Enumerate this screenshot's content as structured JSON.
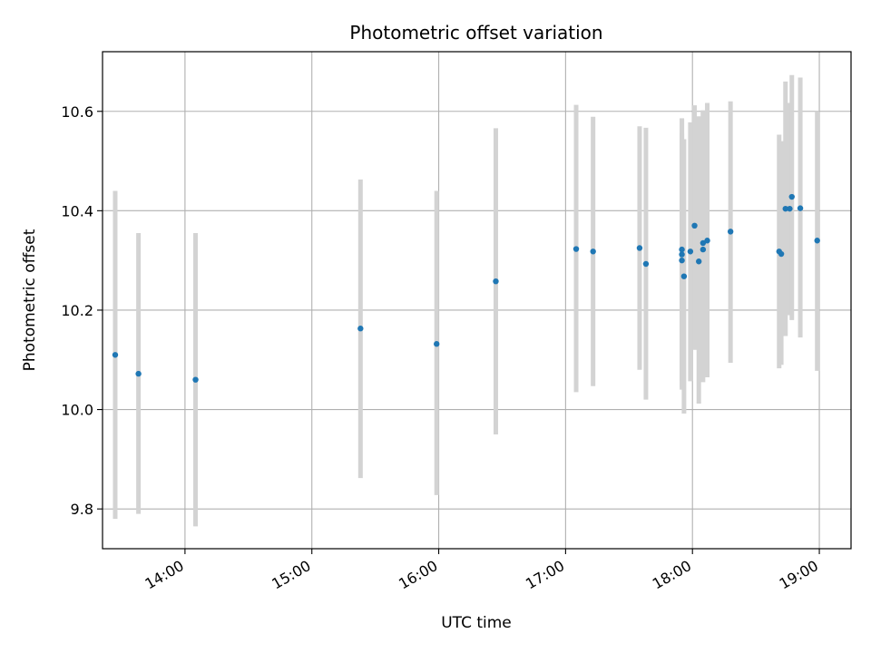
{
  "chart_data": {
    "type": "scatter",
    "title": "Photometric offset variation",
    "xlabel": "UTC time",
    "ylabel": "Photometric offset",
    "x_ticks": [
      "14:00",
      "15:00",
      "16:00",
      "17:00",
      "18:00",
      "19:00"
    ],
    "y_ticks": [
      "9.8",
      "10.0",
      "10.2",
      "10.4",
      "10.6"
    ],
    "xlim": [
      "13:21",
      "19:15"
    ],
    "ylim": [
      9.72,
      10.72
    ],
    "grid": true,
    "colors": {
      "point": "#1f77b4",
      "errorbar": "#d3d3d3",
      "grid": "#b0b0b0"
    },
    "points": [
      {
        "t": "13:27",
        "y": 10.11,
        "lo": 9.78,
        "hi": 10.44
      },
      {
        "t": "13:38",
        "y": 10.072,
        "lo": 9.79,
        "hi": 10.355
      },
      {
        "t": "14:05",
        "y": 10.06,
        "lo": 9.765,
        "hi": 10.355
      },
      {
        "t": "15:23",
        "y": 10.163,
        "lo": 9.862,
        "hi": 10.463
      },
      {
        "t": "15:59",
        "y": 10.132,
        "lo": 9.828,
        "hi": 10.44
      },
      {
        "t": "16:27",
        "y": 10.258,
        "lo": 9.95,
        "hi": 10.566
      },
      {
        "t": "17:05",
        "y": 10.323,
        "lo": 10.035,
        "hi": 10.613
      },
      {
        "t": "17:13",
        "y": 10.318,
        "lo": 10.047,
        "hi": 10.589
      },
      {
        "t": "17:35",
        "y": 10.325,
        "lo": 10.08,
        "hi": 10.57
      },
      {
        "t": "17:38",
        "y": 10.293,
        "lo": 10.02,
        "hi": 10.567
      },
      {
        "t": "17:55",
        "y": 10.322,
        "lo": 10.058,
        "hi": 10.586
      },
      {
        "t": "17:55",
        "y": 10.312,
        "lo": 10.04,
        "hi": 10.584
      },
      {
        "t": "17:55",
        "y": 10.3,
        "lo": 10.045,
        "hi": 10.555
      },
      {
        "t": "17:56",
        "y": 10.268,
        "lo": 9.992,
        "hi": 10.544
      },
      {
        "t": "17:59",
        "y": 10.318,
        "lo": 10.057,
        "hi": 10.578
      },
      {
        "t": "18:01",
        "y": 10.37,
        "lo": 10.12,
        "hi": 10.612
      },
      {
        "t": "18:03",
        "y": 10.298,
        "lo": 10.012,
        "hi": 10.59
      },
      {
        "t": "18:05",
        "y": 10.322,
        "lo": 10.055,
        "hi": 10.602
      },
      {
        "t": "18:05",
        "y": 10.335,
        "lo": 10.07,
        "hi": 10.6
      },
      {
        "t": "18:07",
        "y": 10.34,
        "lo": 10.065,
        "hi": 10.617
      },
      {
        "t": "18:18",
        "y": 10.358,
        "lo": 10.094,
        "hi": 10.62
      },
      {
        "t": "18:41",
        "y": 10.318,
        "lo": 10.083,
        "hi": 10.553
      },
      {
        "t": "18:42",
        "y": 10.313,
        "lo": 10.09,
        "hi": 10.54
      },
      {
        "t": "18:44",
        "y": 10.404,
        "lo": 10.148,
        "hi": 10.66
      },
      {
        "t": "18:46",
        "y": 10.404,
        "lo": 10.19,
        "hi": 10.617
      },
      {
        "t": "18:47",
        "y": 10.428,
        "lo": 10.18,
        "hi": 10.673
      },
      {
        "t": "18:51",
        "y": 10.405,
        "lo": 10.145,
        "hi": 10.668
      },
      {
        "t": "18:59",
        "y": 10.34,
        "lo": 10.078,
        "hi": 10.6
      }
    ]
  }
}
